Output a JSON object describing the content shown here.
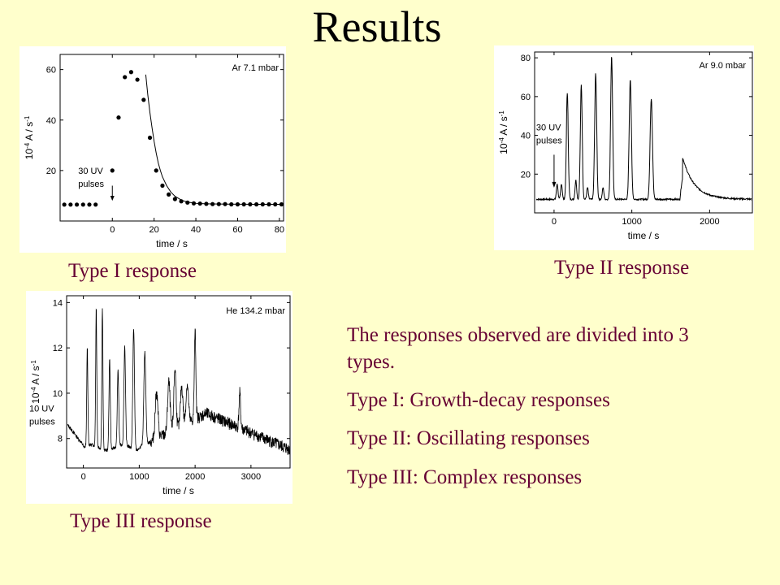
{
  "title": "Results",
  "captions": {
    "type1": "Type I response",
    "type2": "Type II response",
    "type3": "Type III response"
  },
  "summary": {
    "intro": "The responses observed are divided into 3 types.",
    "line1": "Type I: Growth-decay responses",
    "line2": "Type II: Oscillating responses",
    "line3": "Type III: Complex responses"
  },
  "chart_data": [
    {
      "id": "type1",
      "type": "scatter",
      "xlabel": "time / s",
      "ylabel_pre": "10",
      "ylabel_exp": "-4",
      "ylabel_post": "A / s",
      "ylabel_exp2": "-1",
      "xlim": [
        -25,
        82
      ],
      "ylim": [
        0,
        66
      ],
      "xticks": [
        0,
        20,
        40,
        60,
        80
      ],
      "yticks": [
        20,
        40,
        60
      ],
      "annotation": "Ar 7.1 mbar",
      "pulse_label_1": "30 UV",
      "pulse_label_2": "pulses",
      "points": [
        [
          -23,
          6.5
        ],
        [
          -20,
          6.5
        ],
        [
          -17,
          6.5
        ],
        [
          -14,
          6.5
        ],
        [
          -11,
          6.5
        ],
        [
          -8,
          6.5
        ],
        [
          0,
          20
        ],
        [
          3,
          41
        ],
        [
          6,
          57
        ],
        [
          9,
          59
        ],
        [
          12,
          56
        ],
        [
          15,
          48
        ],
        [
          18,
          33
        ],
        [
          21,
          20
        ],
        [
          24,
          14
        ],
        [
          27,
          10.5
        ],
        [
          30,
          8.7
        ],
        [
          33,
          7.8
        ],
        [
          36,
          7.3
        ],
        [
          39,
          7.0
        ],
        [
          42,
          6.9
        ],
        [
          45,
          6.8
        ],
        [
          48,
          6.7
        ],
        [
          51,
          6.7
        ],
        [
          54,
          6.7
        ],
        [
          57,
          6.6
        ],
        [
          60,
          6.6
        ],
        [
          63,
          6.6
        ],
        [
          66,
          6.6
        ],
        [
          69,
          6.6
        ],
        [
          72,
          6.6
        ],
        [
          75,
          6.6
        ],
        [
          78,
          6.6
        ],
        [
          81,
          6.6
        ]
      ],
      "fit_curve": [
        [
          16,
          58
        ],
        [
          17,
          50
        ],
        [
          18,
          43
        ],
        [
          19,
          37
        ],
        [
          20,
          31.5
        ],
        [
          21,
          27
        ],
        [
          22,
          23
        ],
        [
          23,
          20
        ],
        [
          24,
          17.5
        ],
        [
          26,
          14
        ],
        [
          28,
          11.5
        ],
        [
          30,
          9.8
        ],
        [
          33,
          8.3
        ],
        [
          36,
          7.5
        ],
        [
          40,
          7.0
        ],
        [
          45,
          6.8
        ],
        [
          55,
          6.7
        ],
        [
          70,
          6.6
        ],
        [
          82,
          6.6
        ]
      ]
    },
    {
      "id": "type2",
      "type": "line",
      "xlabel": "time / s",
      "ylabel_pre": "10",
      "ylabel_exp": "-4",
      "ylabel_post": "A / s",
      "ylabel_exp2": "-1",
      "xlim": [
        -250,
        2550
      ],
      "ylim": [
        0,
        83
      ],
      "xticks": [
        0,
        1000,
        2000
      ],
      "yticks": [
        20,
        40,
        60,
        80
      ],
      "annotation": "Ar 9.0 mbar",
      "pulse_label_1": "30 UV",
      "pulse_label_2": "pulses",
      "baseline": 7,
      "peaks": [
        {
          "x": 40,
          "h": 15,
          "w": 10
        },
        {
          "x": 95,
          "h": 15,
          "w": 10
        },
        {
          "x": 170,
          "h": 62,
          "w": 12
        },
        {
          "x": 280,
          "h": 17,
          "w": 10
        },
        {
          "x": 350,
          "h": 66,
          "w": 12
        },
        {
          "x": 430,
          "h": 13,
          "w": 10
        },
        {
          "x": 535,
          "h": 72,
          "w": 13
        },
        {
          "x": 630,
          "h": 13,
          "w": 10
        },
        {
          "x": 740,
          "h": 81,
          "w": 13
        },
        {
          "x": 980,
          "h": 69,
          "w": 14
        },
        {
          "x": 1250,
          "h": 59,
          "w": 15
        },
        {
          "x": 1620,
          "h": 20,
          "w": 40
        }
      ]
    },
    {
      "id": "type3",
      "type": "line",
      "xlabel": "time / s",
      "ylabel_pre": "10",
      "ylabel_exp": "-4",
      "ylabel_post": "A / s",
      "ylabel_exp2": "-1",
      "xlim": [
        -300,
        3700
      ],
      "ylim": [
        6.7,
        14.3
      ],
      "xticks": [
        0,
        1000,
        2000,
        3000
      ],
      "yticks": [
        8,
        10,
        12,
        14
      ],
      "annotation": "He 134.2 mbar",
      "pulse_label_1": "10 UV",
      "pulse_label_2": "pulses",
      "peaks": [
        {
          "x": 70,
          "h": 12.0,
          "w": 10
        },
        {
          "x": 230,
          "h": 13.8,
          "w": 10
        },
        {
          "x": 340,
          "h": 13.7,
          "w": 10
        },
        {
          "x": 470,
          "h": 11.5,
          "w": 12
        },
        {
          "x": 620,
          "h": 11.0,
          "w": 13
        },
        {
          "x": 740,
          "h": 12.1,
          "w": 14
        },
        {
          "x": 900,
          "h": 12.8,
          "w": 15
        },
        {
          "x": 1100,
          "h": 11.8,
          "w": 18
        },
        {
          "x": 1310,
          "h": 10.0,
          "w": 25
        },
        {
          "x": 1530,
          "h": 10.5,
          "w": 22
        },
        {
          "x": 1640,
          "h": 11.1,
          "w": 20
        },
        {
          "x": 1760,
          "h": 10.3,
          "w": 22
        },
        {
          "x": 1860,
          "h": 10.4,
          "w": 22
        },
        {
          "x": 2000,
          "h": 12.7,
          "w": 14
        },
        {
          "x": 2800,
          "h": 10.0,
          "w": 14
        }
      ]
    }
  ]
}
